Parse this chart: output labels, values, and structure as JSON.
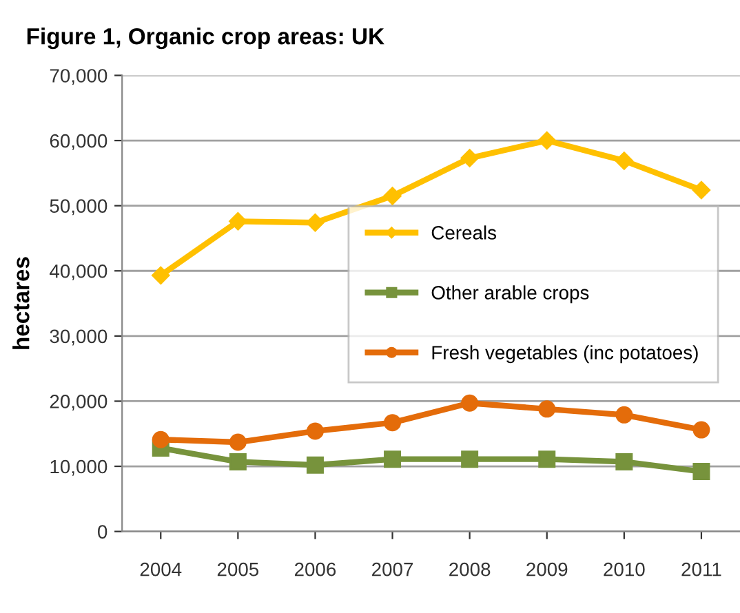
{
  "chart_data": {
    "type": "line",
    "title": "Figure 1, Organic crop areas: UK",
    "ylabel": "hectares",
    "categories": [
      "2004",
      "2005",
      "2006",
      "2007",
      "2008",
      "2009",
      "2010",
      "2011"
    ],
    "series": [
      {
        "name": "Cereals",
        "color": "#ffc000",
        "marker": "diamond",
        "values": [
          39300,
          47600,
          47400,
          51500,
          57300,
          60000,
          56900,
          52400
        ]
      },
      {
        "name": "Other arable crops",
        "color": "#77933c",
        "marker": "square",
        "values": [
          12800,
          10700,
          10200,
          11100,
          11100,
          11100,
          10700,
          9200
        ]
      },
      {
        "name": "Fresh vegetables (inc potatoes)",
        "color": "#e46c0a",
        "marker": "circle",
        "values": [
          14100,
          13700,
          15400,
          16700,
          19700,
          18800,
          17900,
          15600
        ]
      }
    ],
    "ylim": [
      0,
      70000
    ],
    "yticks": [
      {
        "value": 0,
        "label": "0"
      },
      {
        "value": 10000,
        "label": "10,000"
      },
      {
        "value": 20000,
        "label": "20,000"
      },
      {
        "value": 30000,
        "label": "30,000"
      },
      {
        "value": 40000,
        "label": "40,000"
      },
      {
        "value": 50000,
        "label": "50,000"
      },
      {
        "value": 60000,
        "label": "60,000"
      },
      {
        "value": 70000,
        "label": "70,000"
      }
    ],
    "grid": "y",
    "legend": "right",
    "line_style": "solid"
  }
}
